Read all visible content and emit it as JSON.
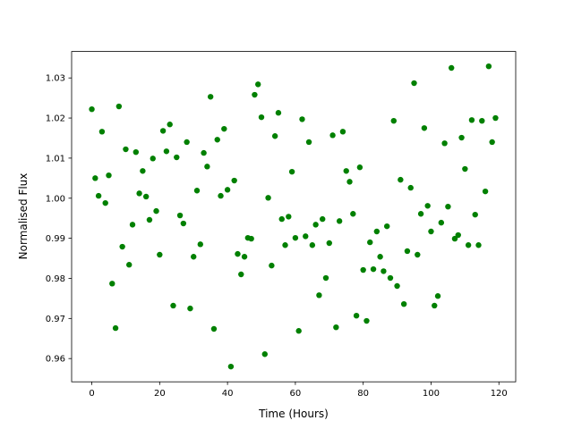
{
  "chart_data": {
    "type": "scatter",
    "xlabel": "Time (Hours)",
    "ylabel": "Normalised Flux",
    "color": "#008000",
    "grid": false,
    "xlim": [
      -5.95,
      124.95
    ],
    "ylim": [
      0.9542,
      1.0366
    ],
    "xticks": [
      0,
      20,
      40,
      60,
      80,
      100,
      120
    ],
    "yticks": [
      0.96,
      0.97,
      0.98,
      0.99,
      {
        "value": 1,
        "label": "1.00"
      },
      1.01,
      1.02,
      1.03
    ],
    "x": [
      0,
      1,
      2,
      3,
      4,
      5,
      6,
      7,
      8,
      9,
      10,
      11,
      12,
      13,
      14,
      15,
      16,
      17,
      18,
      19,
      20,
      21,
      22,
      23,
      24,
      25,
      26,
      27,
      28,
      29,
      30,
      31,
      32,
      33,
      34,
      35,
      36,
      37,
      38,
      39,
      40,
      41,
      42,
      43,
      44,
      45,
      46,
      47,
      48,
      49,
      50,
      51,
      52,
      53,
      54,
      55,
      56,
      57,
      58,
      59,
      60,
      61,
      62,
      63,
      64,
      65,
      66,
      67,
      68,
      69,
      70,
      71,
      72,
      73,
      74,
      75,
      76,
      77,
      78,
      79,
      80,
      81,
      82,
      83,
      84,
      85,
      86,
      87,
      88,
      89,
      90,
      91,
      92,
      93,
      94,
      95,
      96,
      97,
      98,
      99,
      100,
      101,
      102,
      103,
      104,
      105,
      106,
      107,
      108,
      109,
      110,
      111,
      112,
      113,
      114,
      115,
      116,
      117,
      118,
      119
    ],
    "values": [
      1.0222,
      1.005,
      1.0006,
      1.0166,
      0.9988,
      1.0057,
      0.9787,
      0.9676,
      1.0229,
      0.9879,
      1.0122,
      0.9834,
      0.9934,
      1.0115,
      1.0012,
      1.0068,
      1.0004,
      0.9946,
      1.0099,
      0.9968,
      0.9859,
      1.0168,
      1.0117,
      1.0184,
      0.9732,
      1.0102,
      0.9957,
      0.9937,
      1.014,
      0.9725,
      0.9854,
      1.0019,
      0.9885,
      1.0113,
      1.0079,
      1.0253,
      0.9674,
      1.0146,
      1.0006,
      1.0173,
      1.0021,
      0.958,
      1.0044,
      0.9861,
      0.981,
      0.9854,
      0.9901,
      0.9899,
      1.0258,
      1.0284,
      1.0202,
      0.9611,
      1.0001,
      0.9832,
      1.0155,
      1.0213,
      0.9948,
      0.9883,
      0.9954,
      1.0066,
      0.9901,
      0.9669,
      1.0197,
      0.9905,
      1.014,
      0.9883,
      0.9934,
      0.9758,
      0.9948,
      0.9801,
      0.9888,
      1.0157,
      0.9678,
      0.9943,
      1.0166,
      1.0068,
      1.0041,
      0.9961,
      0.9707,
      1.0077,
      0.9821,
      0.9694,
      0.989,
      0.9823,
      0.9917,
      0.9854,
      0.9818,
      0.993,
      0.9801,
      1.0193,
      0.9781,
      1.0046,
      0.9736,
      0.9868,
      1.0026,
      1.0287,
      0.9859,
      0.9961,
      1.0175,
      0.9981,
      0.9917,
      0.9732,
      0.9756,
      0.9939,
      1.0137,
      0.9979,
      1.0325,
      0.9899,
      0.9908,
      1.0151,
      1.0073,
      0.9883,
      1.0195,
      0.9959,
      0.9883,
      1.0193,
      1.0017,
      1.0329,
      1.014,
      1.02
    ]
  }
}
